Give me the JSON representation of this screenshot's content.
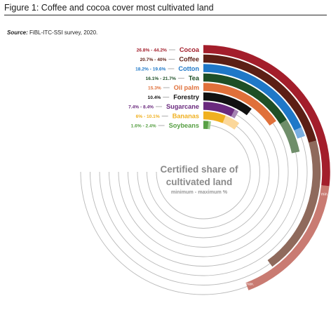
{
  "figure": {
    "title": "Figure 1: Coffee and cocoa cover most cultivated land",
    "source_label": "Source:",
    "source_text": "FiBL-ITC-SSI survey, 2020."
  },
  "chart_data": {
    "type": "radial-bar",
    "center_label": "Certified share of cultivated land",
    "center_sublabel": "minimum - maximum %",
    "end_label_min": "min.",
    "end_label_max": "max.",
    "series": [
      {
        "name": "Cocoa",
        "range_label": "26.8% - 44.2%",
        "min": 26.8,
        "max": 44.2,
        "color": "#a31e2b",
        "max_color": "#c97b72"
      },
      {
        "name": "Coffee",
        "range_label": "20.7% - 40%",
        "min": 20.7,
        "max": 40.0,
        "color": "#5c1f15",
        "max_color": "#8f6a5c"
      },
      {
        "name": "Cotton",
        "range_label": "18.2% - 19.6%",
        "min": 18.2,
        "max": 19.6,
        "color": "#1f78c8",
        "max_color": "#79aee0"
      },
      {
        "name": "Tea",
        "range_label": "16.1% - 21.7%",
        "min": 16.1,
        "max": 21.7,
        "color": "#1e4f26",
        "max_color": "#6f8e6a"
      },
      {
        "name": "Oil palm",
        "range_label": "15.3%",
        "min": 15.3,
        "max": 15.3,
        "color": "#e0703a",
        "max_color": "#e0703a"
      },
      {
        "name": "Forestry",
        "range_label": "10.4%",
        "min": 10.4,
        "max": 10.4,
        "color": "#111111",
        "max_color": "#111111"
      },
      {
        "name": "Sugarcane",
        "range_label": "7.4% - 8.4%",
        "min": 7.4,
        "max": 8.4,
        "color": "#6a2a7e",
        "max_color": "#a584b3"
      },
      {
        "name": "Bananas",
        "range_label": "6% - 10.1%",
        "min": 6.0,
        "max": 10.1,
        "color": "#f0b020",
        "max_color": "#fbd79a"
      },
      {
        "name": "Soybeans",
        "range_label": "1.6% - 2.4%",
        "min": 1.6,
        "max": 2.4,
        "color": "#58a045",
        "max_color": "#9acb8c"
      }
    ],
    "scale_max": 50,
    "grid": true,
    "legend": "inline-left-of-tracks"
  }
}
